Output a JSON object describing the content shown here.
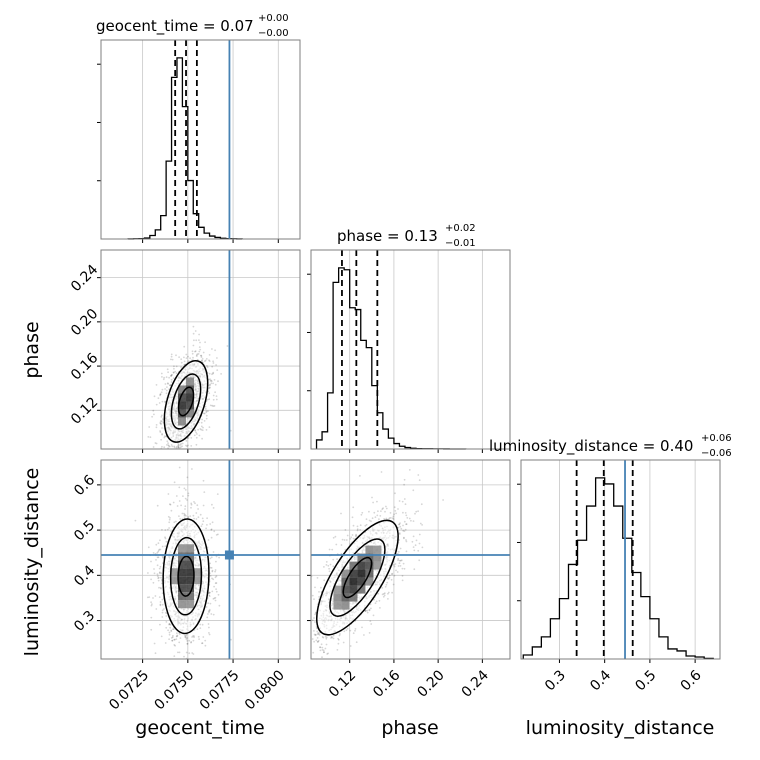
{
  "colors": {
    "truth": "#4682b4",
    "contour": "#000000",
    "grid": "#c8c8c8",
    "axis": "#7f7f7f"
  },
  "chart_data": {
    "type": "corner",
    "parameters": [
      "geocent_time",
      "phase",
      "luminosity_distance"
    ],
    "titles": [
      {
        "param": "geocent_time",
        "lhs": "geocent_time = 0.07",
        "plus": "+0.00",
        "minus": "−0.00"
      },
      {
        "param": "phase",
        "lhs": "phase = 0.13",
        "plus": "+0.02",
        "minus": "−0.01"
      },
      {
        "param": "luminosity_distance",
        "lhs": "luminosity_distance = 0.40",
        "plus": "+0.06",
        "minus": "−0.06"
      }
    ],
    "truths": {
      "geocent_time": 0.0773,
      "phase": null,
      "luminosity_distance": 0.445
    },
    "ranges": {
      "geocent_time": [
        0.0702,
        0.0812
      ],
      "phase": [
        0.085,
        0.265
      ],
      "luminosity_distance": [
        0.215,
        0.655
      ]
    },
    "ticks": {
      "geocent_time": {
        "values": [
          0.0725,
          0.075,
          0.0775,
          0.08
        ],
        "labels": [
          "0.0725",
          "0.0750",
          "0.0775",
          "0.0800"
        ]
      },
      "phase": {
        "values": [
          0.12,
          0.16,
          0.2,
          0.24
        ],
        "labels": [
          "0.12",
          "0.16",
          "0.20",
          "0.24"
        ]
      },
      "luminosity_distance": {
        "values": [
          0.3,
          0.4,
          0.5,
          0.6
        ],
        "labels": [
          "0.3",
          "0.4",
          "0.5",
          "0.6"
        ]
      }
    },
    "quantiles": {
      "geocent_time": [
        0.0743,
        0.0749,
        0.0755
      ],
      "phase": [
        0.113,
        0.126,
        0.145
      ],
      "luminosity_distance": [
        0.338,
        0.398,
        0.462
      ]
    },
    "histograms": {
      "geocent_time": {
        "edges": [
          0.0717,
          0.072,
          0.0723,
          0.0726,
          0.0729,
          0.0732,
          0.0735,
          0.0738,
          0.0741,
          0.0744,
          0.0747,
          0.075,
          0.0753,
          0.0756,
          0.0759,
          0.0762,
          0.0765,
          0.0768,
          0.0771,
          0.0774,
          0.0777,
          0.078
        ],
        "counts": [
          0.3,
          1,
          2,
          5,
          18,
          47,
          120,
          400,
          830,
          930,
          680,
          300,
          130,
          60,
          30,
          15,
          8,
          4,
          2,
          1,
          0.3
        ]
      },
      "phase": {
        "edges": [
          0.09,
          0.095,
          0.1,
          0.105,
          0.11,
          0.115,
          0.12,
          0.125,
          0.13,
          0.135,
          0.14,
          0.145,
          0.15,
          0.155,
          0.16,
          0.165,
          0.17,
          0.175,
          0.18,
          0.185,
          0.19,
          0.195,
          0.2,
          0.205,
          0.21,
          0.215,
          0.22,
          0.225
        ],
        "counts": [
          50,
          95,
          310,
          920,
          1000,
          990,
          780,
          770,
          600,
          560,
          350,
          200,
          110,
          60,
          30,
          15,
          8,
          4,
          2,
          1,
          1,
          0.5,
          0.5,
          0.3,
          0.2,
          0.1,
          0.1
        ]
      },
      "luminosity_distance": {
        "edges": [
          0.22,
          0.24,
          0.26,
          0.28,
          0.3,
          0.32,
          0.34,
          0.36,
          0.38,
          0.4,
          0.42,
          0.44,
          0.46,
          0.48,
          0.5,
          0.52,
          0.54,
          0.56,
          0.58,
          0.6,
          0.62,
          0.64
        ],
        "counts": [
          20,
          60,
          110,
          200,
          300,
          470,
          590,
          760,
          900,
          870,
          760,
          600,
          430,
          310,
          200,
          110,
          50,
          40,
          15,
          10,
          3
        ]
      }
    }
  }
}
